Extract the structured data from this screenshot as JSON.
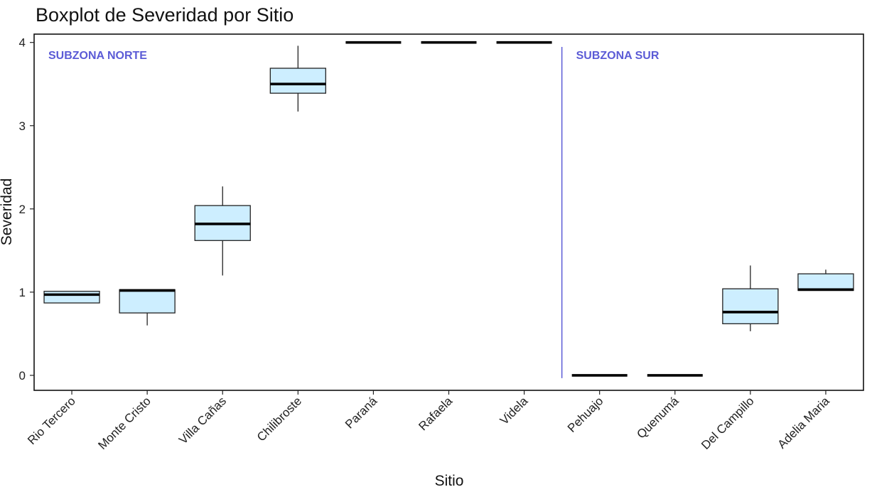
{
  "chart_data": {
    "type": "boxplot",
    "title": "Boxplot de Severidad por Sitio",
    "xlabel": "Sitio",
    "ylabel": "Severidad",
    "ylim": [
      -0.18,
      4.1
    ],
    "yticks": [
      0,
      1,
      2,
      3,
      4
    ],
    "categories": [
      "Rio Tercero",
      "Monte Cristo",
      "Villa Cañas",
      "Chilibroste",
      "Paraná",
      "Rafaela",
      "Videla",
      "Pehuajo",
      "Quenumá",
      "Del Campillo",
      "Adelia Maria"
    ],
    "boxes": [
      {
        "min": 0.87,
        "q1": 0.87,
        "median": 0.97,
        "q3": 1.01,
        "max": 1.01
      },
      {
        "min": 0.6,
        "q1": 0.75,
        "median": 1.02,
        "q3": 1.03,
        "max": 1.03
      },
      {
        "min": 1.2,
        "q1": 1.62,
        "median": 1.82,
        "q3": 2.04,
        "max": 2.27
      },
      {
        "min": 3.17,
        "q1": 3.39,
        "median": 3.5,
        "q3": 3.69,
        "max": 3.96
      },
      {
        "min": 4.0,
        "q1": 4.0,
        "median": 4.0,
        "q3": 4.0,
        "max": 4.0
      },
      {
        "min": 4.0,
        "q1": 4.0,
        "median": 4.0,
        "q3": 4.0,
        "max": 4.0
      },
      {
        "min": 4.0,
        "q1": 4.0,
        "median": 4.0,
        "q3": 4.0,
        "max": 4.0
      },
      {
        "min": 0.0,
        "q1": 0.0,
        "median": 0.0,
        "q3": 0.0,
        "max": 0.0
      },
      {
        "min": 0.0,
        "q1": 0.0,
        "median": 0.0,
        "q3": 0.0,
        "max": 0.0
      },
      {
        "min": 0.53,
        "q1": 0.62,
        "median": 0.76,
        "q3": 1.04,
        "max": 1.32
      },
      {
        "min": 1.02,
        "q1": 1.02,
        "median": 1.03,
        "q3": 1.22,
        "max": 1.27
      }
    ],
    "annotations": [
      {
        "text": "SUBZONA NORTE",
        "category_index": 0
      },
      {
        "text": "SUBZONA SUR",
        "category_index": 7
      }
    ],
    "divider_between": [
      6,
      7
    ],
    "grid": false,
    "legend": "none",
    "colors": {
      "box_fill": "#cdeeff",
      "box_stroke": "#222222",
      "median": "#000000",
      "annotation": "#5b5bd6",
      "divider": "#5b5bd6"
    }
  }
}
